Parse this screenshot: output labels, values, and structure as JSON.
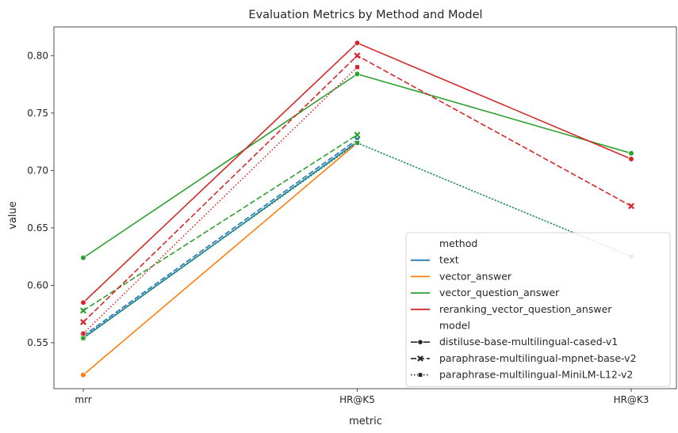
{
  "chart_data": {
    "type": "line",
    "title": "Evaluation Metrics by Method and Model",
    "xlabel": "metric",
    "ylabel": "value",
    "categories": [
      "mrr",
      "HR@K5",
      "HR@K3"
    ],
    "ylim": [
      0.51,
      0.825
    ],
    "yticks": [
      "0.55",
      "0.60",
      "0.65",
      "0.70",
      "0.75",
      "0.80"
    ],
    "grid": false,
    "legend_position": "lower-right",
    "legend": {
      "hue_title": "method",
      "style_title": "model"
    },
    "methods": [
      {
        "name": "text",
        "color": "#1f77b4"
      },
      {
        "name": "vector_answer",
        "color": "#ff7f0e"
      },
      {
        "name": "vector_question_answer",
        "color": "#2ca02c"
      },
      {
        "name": "reranking_vector_question_answer",
        "color": "#d62728"
      }
    ],
    "models": [
      {
        "name": "distiluse-base-multilingual-cased-v1",
        "dash": "solid",
        "marker": "circle"
      },
      {
        "name": "paraphrase-multilingual-mpnet-base-v2",
        "dash": "dashed",
        "marker": "x"
      },
      {
        "name": "paraphrase-multilingual-MiniLM-L12-v2",
        "dash": "dotted",
        "marker": "square"
      }
    ],
    "series": [
      {
        "method": "text",
        "model": "distiluse-base-multilingual-cased-v1",
        "values": [
          0.554,
          0.725,
          null
        ]
      },
      {
        "method": "text",
        "model": "paraphrase-multilingual-mpnet-base-v2",
        "values": [
          0.556,
          0.727,
          null
        ]
      },
      {
        "method": "text",
        "model": "paraphrase-multilingual-MiniLM-L12-v2",
        "values": [
          0.555,
          0.724,
          0.625
        ]
      },
      {
        "method": "vector_answer",
        "model": "distiluse-base-multilingual-cased-v1",
        "values": [
          0.522,
          0.724,
          null
        ]
      },
      {
        "method": "vector_question_answer",
        "model": "distiluse-base-multilingual-cased-v1",
        "values": [
          0.624,
          0.784,
          0.715
        ]
      },
      {
        "method": "vector_question_answer",
        "model": "paraphrase-multilingual-mpnet-base-v2",
        "values": [
          0.578,
          0.731,
          null
        ]
      },
      {
        "method": "vector_question_answer",
        "model": "paraphrase-multilingual-MiniLM-L12-v2",
        "values": [
          0.554,
          0.724,
          0.625
        ]
      },
      {
        "method": "reranking_vector_question_answer",
        "model": "distiluse-base-multilingual-cased-v1",
        "values": [
          0.585,
          0.811,
          0.71
        ]
      },
      {
        "method": "reranking_vector_question_answer",
        "model": "paraphrase-multilingual-mpnet-base-v2",
        "values": [
          0.568,
          0.8,
          0.669
        ]
      },
      {
        "method": "reranking_vector_question_answer",
        "model": "paraphrase-multilingual-MiniLM-L12-v2",
        "values": [
          0.558,
          0.79,
          null
        ]
      }
    ]
  }
}
